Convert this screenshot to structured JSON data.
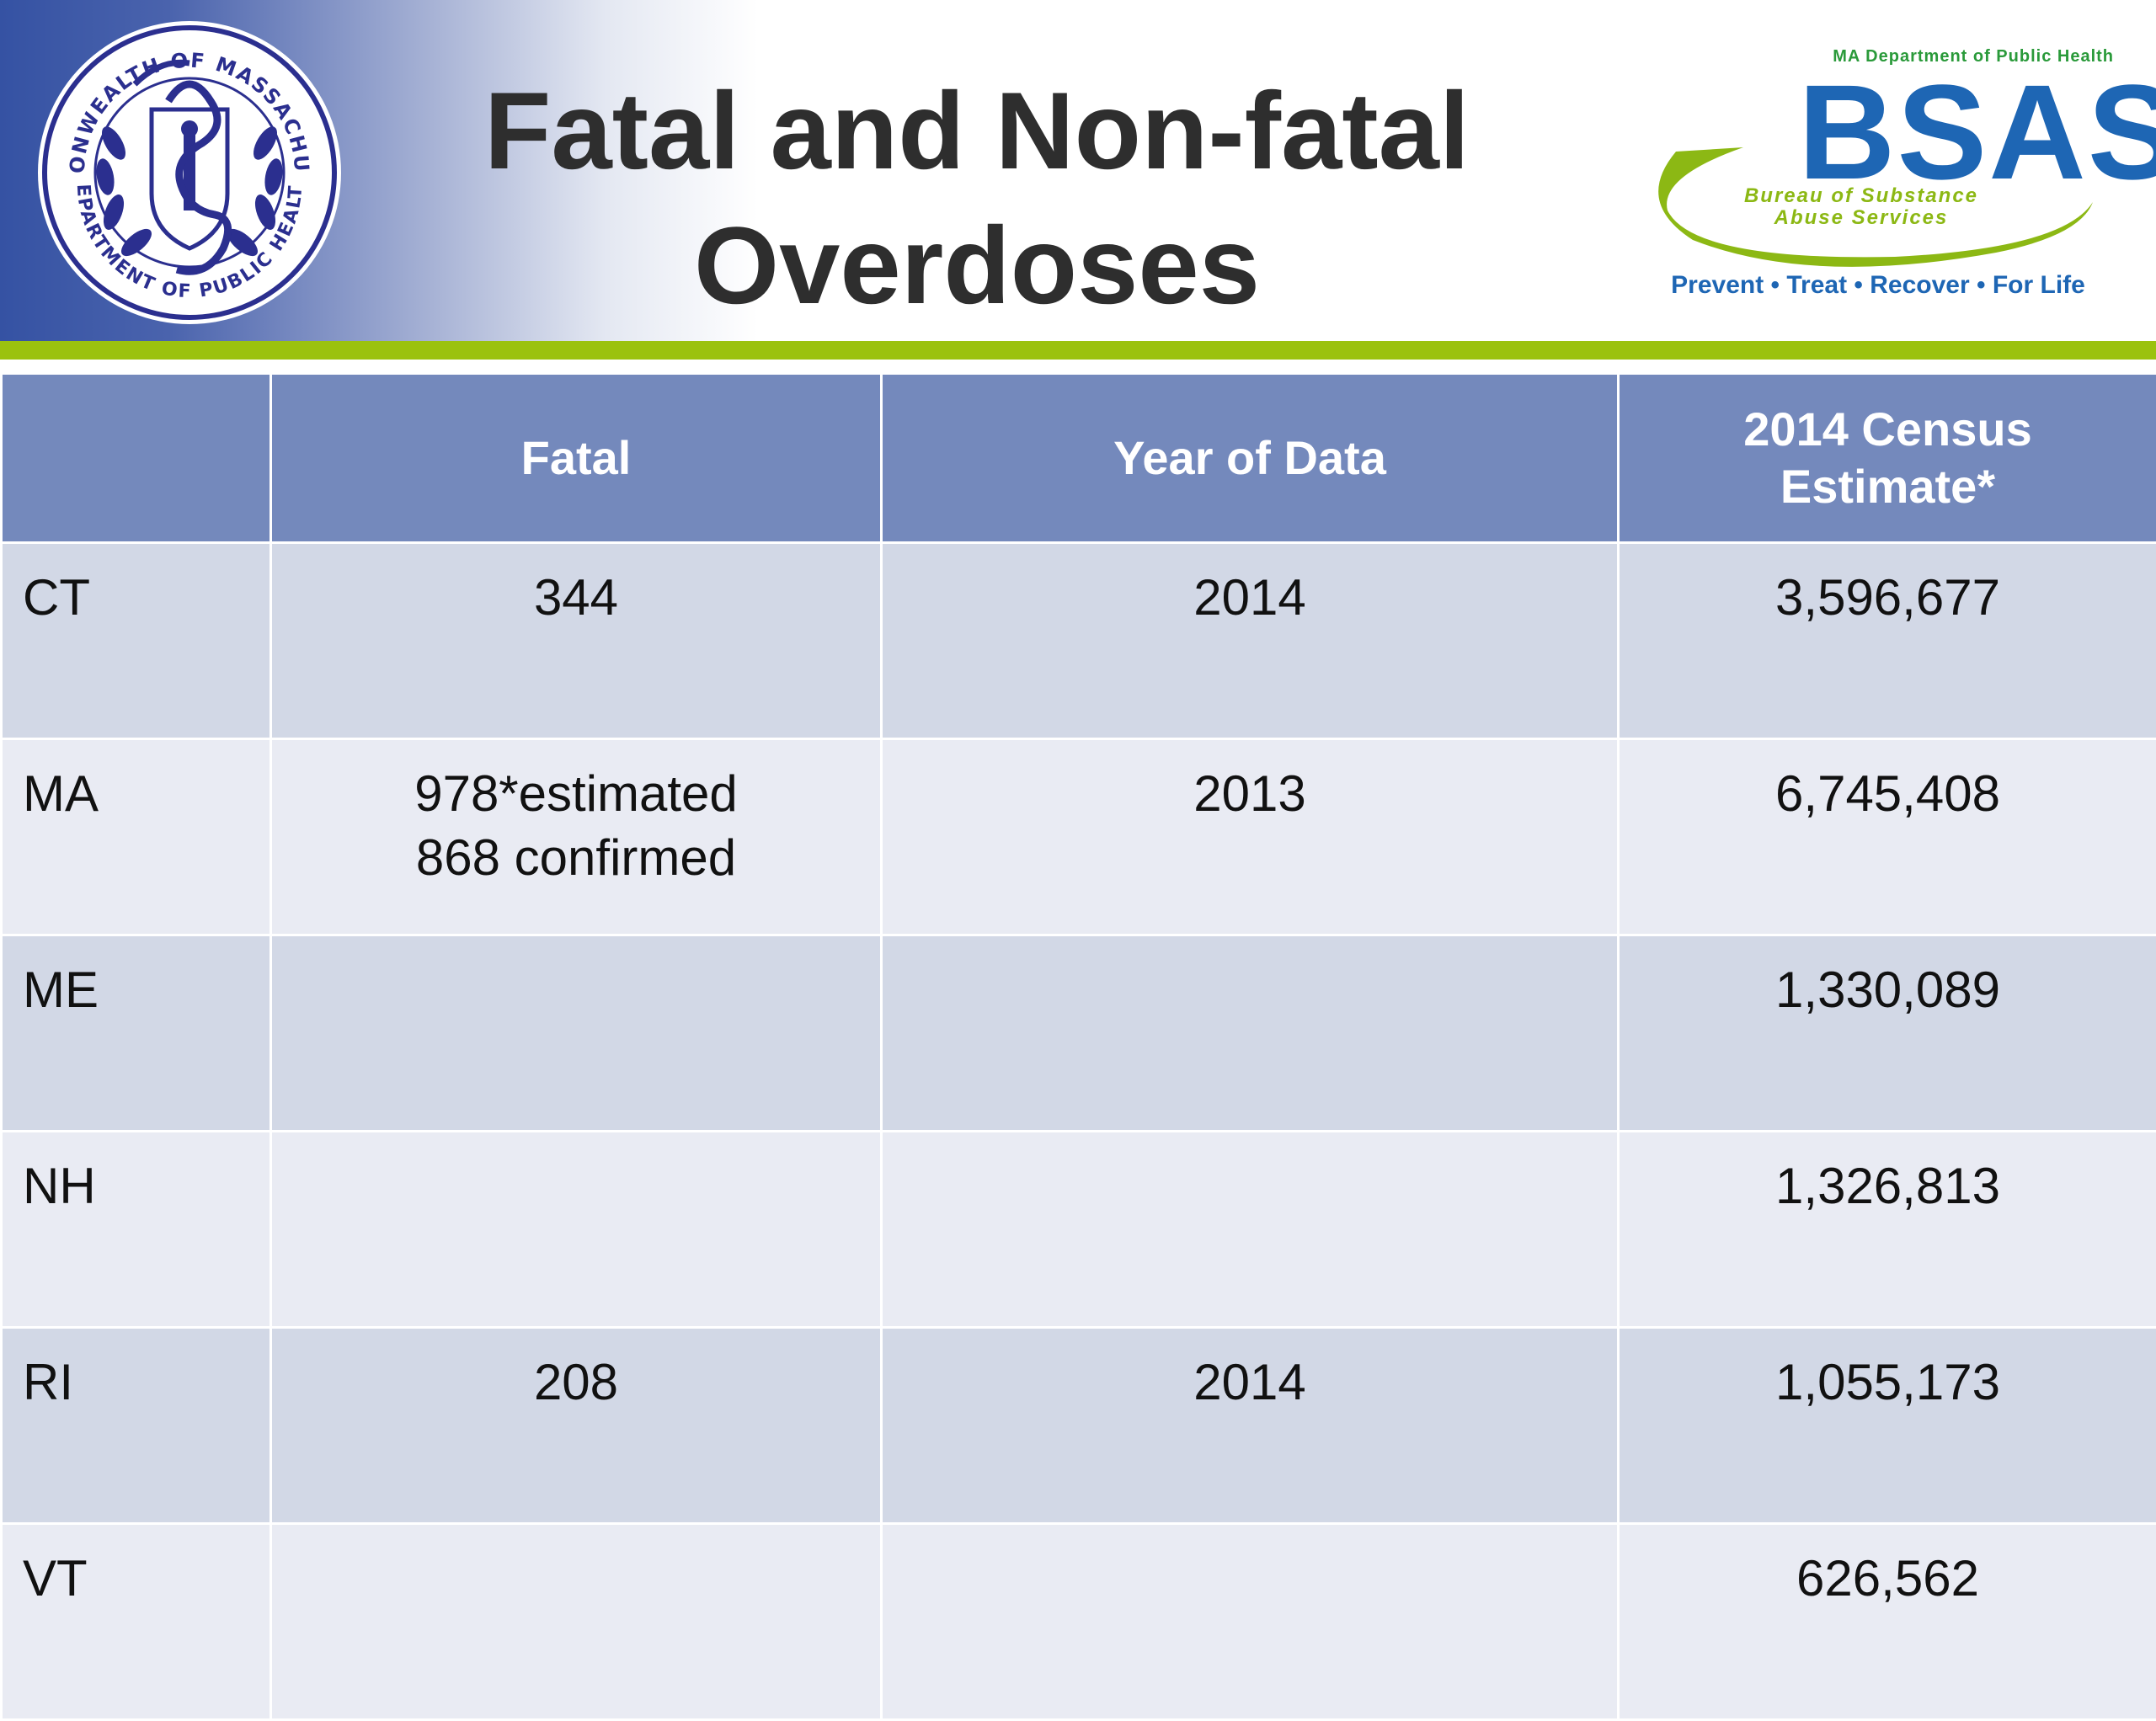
{
  "slide": {
    "title_line1": "Fatal and Non-fatal",
    "title_line2": "Overdoses"
  },
  "seal": {
    "icon": "commonwealth-seal-icon",
    "top_text": "COMMONWEALTH OF MASSACHUSETTS",
    "bottom_text": "DEPARTMENT OF PUBLIC HEALTH"
  },
  "logo": {
    "dept": "MA Department of Public Health",
    "name": "BSAS",
    "bureau_line1": "Bureau of Substance",
    "bureau_line2": "Abuse Services",
    "tagline": "Prevent • Treat • Recover • For Life"
  },
  "table": {
    "headers": [
      "",
      "Fatal",
      "Year of Data",
      "2014 Census Estimate*"
    ],
    "rows": [
      {
        "state": "CT",
        "fatal": "344",
        "fatal2": "",
        "year": "2014",
        "census": "3,596,677"
      },
      {
        "state": "MA",
        "fatal": "978*estimated",
        "fatal2": "868 confirmed",
        "year": "2013",
        "census": "6,745,408"
      },
      {
        "state": "ME",
        "fatal": "",
        "fatal2": "",
        "year": "",
        "census": "1,330,089"
      },
      {
        "state": "NH",
        "fatal": "",
        "fatal2": "",
        "year": "",
        "census": "1,326,813"
      },
      {
        "state": "RI",
        "fatal": "208",
        "fatal2": "",
        "year": "2014",
        "census": "1,055,173"
      },
      {
        "state": "VT",
        "fatal": "",
        "fatal2": "",
        "year": "",
        "census": "626,562"
      }
    ]
  },
  "colors": {
    "header_blue": "#3552a3",
    "accent_green": "#9bc20e",
    "table_header": "#7489bc",
    "row_dark": "#d2d8e6",
    "row_light": "#e9ebf3",
    "bsas_blue": "#1e66b4"
  }
}
